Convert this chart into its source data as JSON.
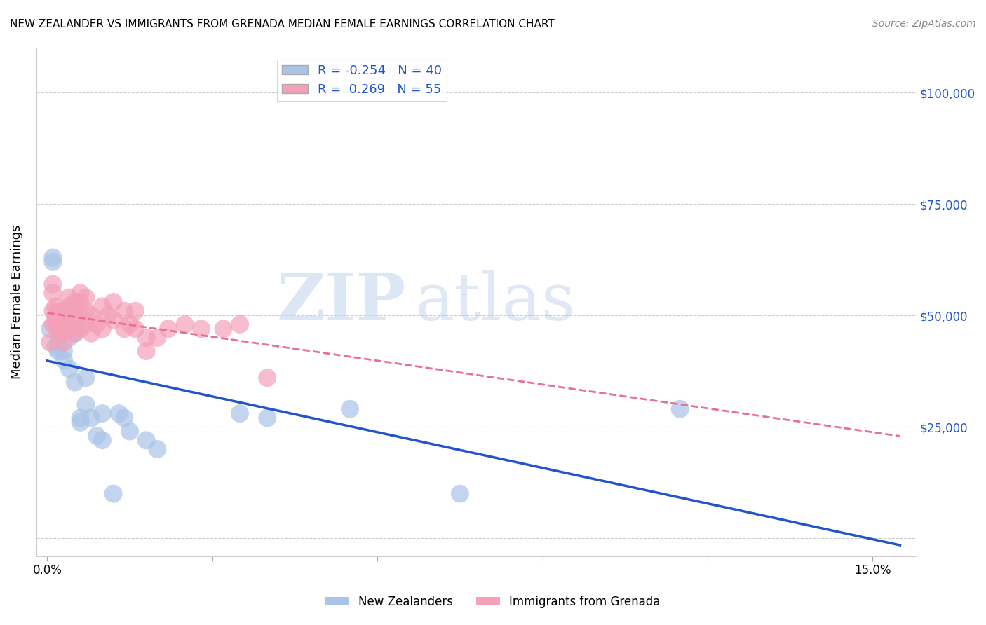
{
  "title": "NEW ZEALANDER VS IMMIGRANTS FROM GRENADA MEDIAN FEMALE EARNINGS CORRELATION CHART",
  "source": "Source: ZipAtlas.com",
  "xlabel_ticks": [
    0.0,
    0.03,
    0.06,
    0.09,
    0.12,
    0.15
  ],
  "xlabel_labels": [
    "0.0%",
    "",
    "",
    "",
    "",
    "15.0%"
  ],
  "ylabel_ticks": [
    0,
    25000,
    50000,
    75000,
    100000
  ],
  "ylabel_labels": [
    "",
    "$25,000",
    "$50,000",
    "$75,000",
    "$100,000"
  ],
  "xlim": [
    -0.002,
    0.158
  ],
  "ylim": [
    -4000,
    110000
  ],
  "nz_R": -0.254,
  "nz_N": 40,
  "gren_R": 0.269,
  "gren_N": 55,
  "nz_color": "#aac4e8",
  "gren_color": "#f4a0b8",
  "nz_line_color": "#2255cc",
  "gren_line_color": "#e87090",
  "legend_label_nz": "New Zealanders",
  "legend_label_gren": "Immigrants from Grenada",
  "ylabel": "Median Female Earnings",
  "watermark_zip": "ZIP",
  "watermark_atlas": "atlas",
  "nz_x": [
    0.0005,
    0.001,
    0.001,
    0.0015,
    0.0015,
    0.0015,
    0.002,
    0.002,
    0.002,
    0.0025,
    0.0025,
    0.003,
    0.003,
    0.003,
    0.003,
    0.003,
    0.004,
    0.004,
    0.005,
    0.005,
    0.005,
    0.006,
    0.006,
    0.007,
    0.007,
    0.008,
    0.009,
    0.01,
    0.01,
    0.012,
    0.013,
    0.014,
    0.015,
    0.018,
    0.02,
    0.035,
    0.04,
    0.055,
    0.075,
    0.115
  ],
  "nz_y": [
    47000,
    63000,
    62000,
    50000,
    48000,
    43000,
    46000,
    44000,
    42000,
    48000,
    46000,
    51000,
    48000,
    47000,
    42000,
    40000,
    45000,
    38000,
    47000,
    46000,
    35000,
    27000,
    26000,
    36000,
    30000,
    27000,
    23000,
    28000,
    22000,
    10000,
    28000,
    27000,
    24000,
    22000,
    20000,
    28000,
    27000,
    29000,
    10000,
    29000
  ],
  "gren_x": [
    0.0005,
    0.001,
    0.001,
    0.001,
    0.001,
    0.0015,
    0.0015,
    0.002,
    0.002,
    0.002,
    0.002,
    0.0025,
    0.0025,
    0.003,
    0.003,
    0.003,
    0.003,
    0.004,
    0.004,
    0.004,
    0.004,
    0.004,
    0.005,
    0.005,
    0.005,
    0.005,
    0.006,
    0.006,
    0.006,
    0.006,
    0.007,
    0.007,
    0.007,
    0.008,
    0.008,
    0.009,
    0.01,
    0.01,
    0.011,
    0.012,
    0.012,
    0.014,
    0.014,
    0.015,
    0.016,
    0.016,
    0.018,
    0.018,
    0.02,
    0.022,
    0.025,
    0.028,
    0.032,
    0.035,
    0.04
  ],
  "gren_y": [
    44000,
    57000,
    55000,
    51000,
    48000,
    52000,
    48000,
    51000,
    49000,
    48000,
    47000,
    50000,
    46000,
    51000,
    49000,
    47000,
    44000,
    54000,
    52000,
    50000,
    49000,
    47000,
    53000,
    51000,
    48000,
    46000,
    55000,
    53000,
    50000,
    47000,
    54000,
    51000,
    48000,
    50000,
    46000,
    48000,
    52000,
    47000,
    50000,
    53000,
    49000,
    51000,
    47000,
    48000,
    51000,
    47000,
    45000,
    42000,
    45000,
    47000,
    48000,
    47000,
    47000,
    48000,
    36000
  ]
}
